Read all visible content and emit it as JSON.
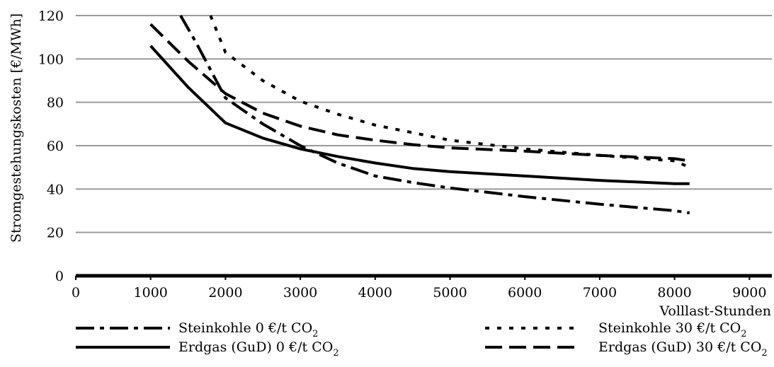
{
  "chart_data": {
    "type": "line",
    "title": "",
    "xlabel": "Volllast-Stunden",
    "ylabel": "Stromgestehungskosten [€/MWh]",
    "xlim": [
      0,
      9300
    ],
    "ylim": [
      0,
      120
    ],
    "x_ticks": [
      "0",
      "1000",
      "2000",
      "3000",
      "4000",
      "5000",
      "6000",
      "7000",
      "8000",
      "9000"
    ],
    "y_ticks": [
      "0",
      "20",
      "40",
      "60",
      "80",
      "100",
      "120"
    ],
    "grid": "horizontal",
    "legend_position": "bottom",
    "series": [
      {
        "name": "Steinkohle 0 €/t CO",
        "name_subscript": "2",
        "line_style": "dash-dot",
        "color": "#000000",
        "points": [
          [
            1400,
            120
          ],
          [
            1600,
            108
          ],
          [
            2000,
            82
          ],
          [
            2500,
            70
          ],
          [
            3000,
            60
          ],
          [
            3500,
            52
          ],
          [
            4000,
            46
          ],
          [
            4500,
            43
          ],
          [
            5000,
            40.5
          ],
          [
            6000,
            36.5
          ],
          [
            7000,
            33
          ],
          [
            8000,
            30
          ],
          [
            8200,
            29
          ]
        ]
      },
      {
        "name": "Erdgas (GuD) 0 €/t CO",
        "name_subscript": "2",
        "line_style": "solid",
        "color": "#000000",
        "points": [
          [
            1000,
            106
          ],
          [
            1500,
            87
          ],
          [
            2000,
            70.5
          ],
          [
            2500,
            63.5
          ],
          [
            3000,
            58.5
          ],
          [
            3500,
            55
          ],
          [
            4000,
            52
          ],
          [
            4500,
            49.5
          ],
          [
            5000,
            48
          ],
          [
            6000,
            46
          ],
          [
            7000,
            44
          ],
          [
            8000,
            42.5
          ],
          [
            8200,
            42.5
          ]
        ]
      },
      {
        "name": "Steinkohle 30 €/t CO",
        "name_subscript": "2",
        "line_style": "dotted",
        "color": "#000000",
        "points": [
          [
            1800,
            120
          ],
          [
            2000,
            103
          ],
          [
            2500,
            90
          ],
          [
            3000,
            80.5
          ],
          [
            3500,
            74.5
          ],
          [
            4000,
            69.5
          ],
          [
            4500,
            66
          ],
          [
            5000,
            62.5
          ],
          [
            6000,
            58.5
          ],
          [
            7000,
            55.5
          ],
          [
            8000,
            53
          ],
          [
            8200,
            50
          ]
        ]
      },
      {
        "name": "Erdgas (GuD) 30 €/t CO",
        "name_subscript": "2",
        "line_style": "dashed",
        "color": "#000000",
        "points": [
          [
            1000,
            116
          ],
          [
            1500,
            99
          ],
          [
            2000,
            84
          ],
          [
            2500,
            75
          ],
          [
            3000,
            69
          ],
          [
            3500,
            65
          ],
          [
            4000,
            62.5
          ],
          [
            4500,
            60.5
          ],
          [
            5000,
            59
          ],
          [
            6000,
            57.5
          ],
          [
            7000,
            55.5
          ],
          [
            8000,
            54
          ],
          [
            8200,
            53
          ]
        ]
      }
    ]
  }
}
